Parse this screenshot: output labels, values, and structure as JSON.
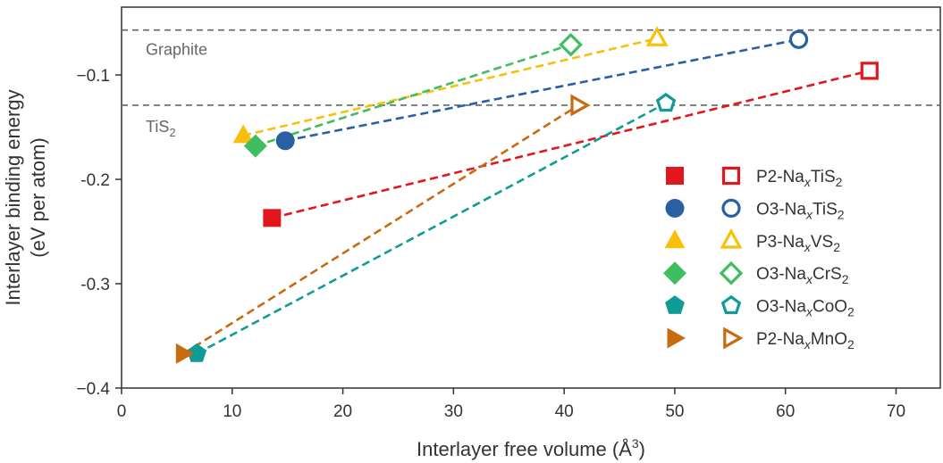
{
  "chart_data": {
    "type": "scatter",
    "xlabel": "Interlayer free volume (Å³)",
    "ylabel_lines": [
      "Interlayer binding energy",
      "(eV per atom)"
    ],
    "xlim": [
      0,
      74
    ],
    "ylim": [
      -0.4,
      -0.035
    ],
    "x_ticks": [
      0,
      10,
      20,
      30,
      40,
      50,
      60,
      70
    ],
    "y_ticks": [
      -0.4,
      -0.3,
      -0.2,
      -0.1
    ],
    "y_tick_labels": [
      "−0.4",
      "-0.3",
      "-0.2",
      "−0.1"
    ],
    "grid": false,
    "legend_position": "right",
    "reference_lines": [
      {
        "label": "Graphite",
        "label_sub": "",
        "value": -0.057
      },
      {
        "label": "TiS",
        "label_sub": "2",
        "value": -0.129
      }
    ],
    "series": [
      {
        "name_parts": [
          "P2-Na",
          "x",
          "TiS",
          "2"
        ],
        "marker": "square",
        "color": "#e3161e",
        "x": [
          13.6,
          67.6
        ],
        "y": [
          -0.237,
          -0.096
        ]
      },
      {
        "name_parts": [
          "O3-Na",
          "x",
          "TiS",
          "2"
        ],
        "marker": "circle",
        "color": "#2a60a2",
        "x": [
          14.8,
          61.2
        ],
        "y": [
          -0.163,
          -0.066
        ]
      },
      {
        "name_parts": [
          "P3-Na",
          "x",
          "VS",
          "2"
        ],
        "marker": "triangle-up",
        "color": "#f8c00a",
        "x": [
          11.0,
          48.4
        ],
        "y": [
          -0.158,
          -0.065
        ]
      },
      {
        "name_parts": [
          "O3-Na",
          "x",
          "CrS",
          "2"
        ],
        "marker": "diamond",
        "color": "#3fbd61",
        "x": [
          12.1,
          40.6
        ],
        "y": [
          -0.168,
          -0.071
        ]
      },
      {
        "name_parts": [
          "O3-Na",
          "x",
          "CoO",
          "2"
        ],
        "marker": "pentagon",
        "color": "#109b96",
        "x": [
          6.8,
          49.2
        ],
        "y": [
          -0.367,
          -0.127
        ]
      },
      {
        "name_parts": [
          "P2-Na",
          "x",
          "MnO",
          "2"
        ],
        "marker": "triangle-right",
        "color": "#c86a11",
        "x": [
          5.6,
          41.3
        ],
        "y": [
          -0.367,
          -0.129
        ]
      }
    ]
  }
}
